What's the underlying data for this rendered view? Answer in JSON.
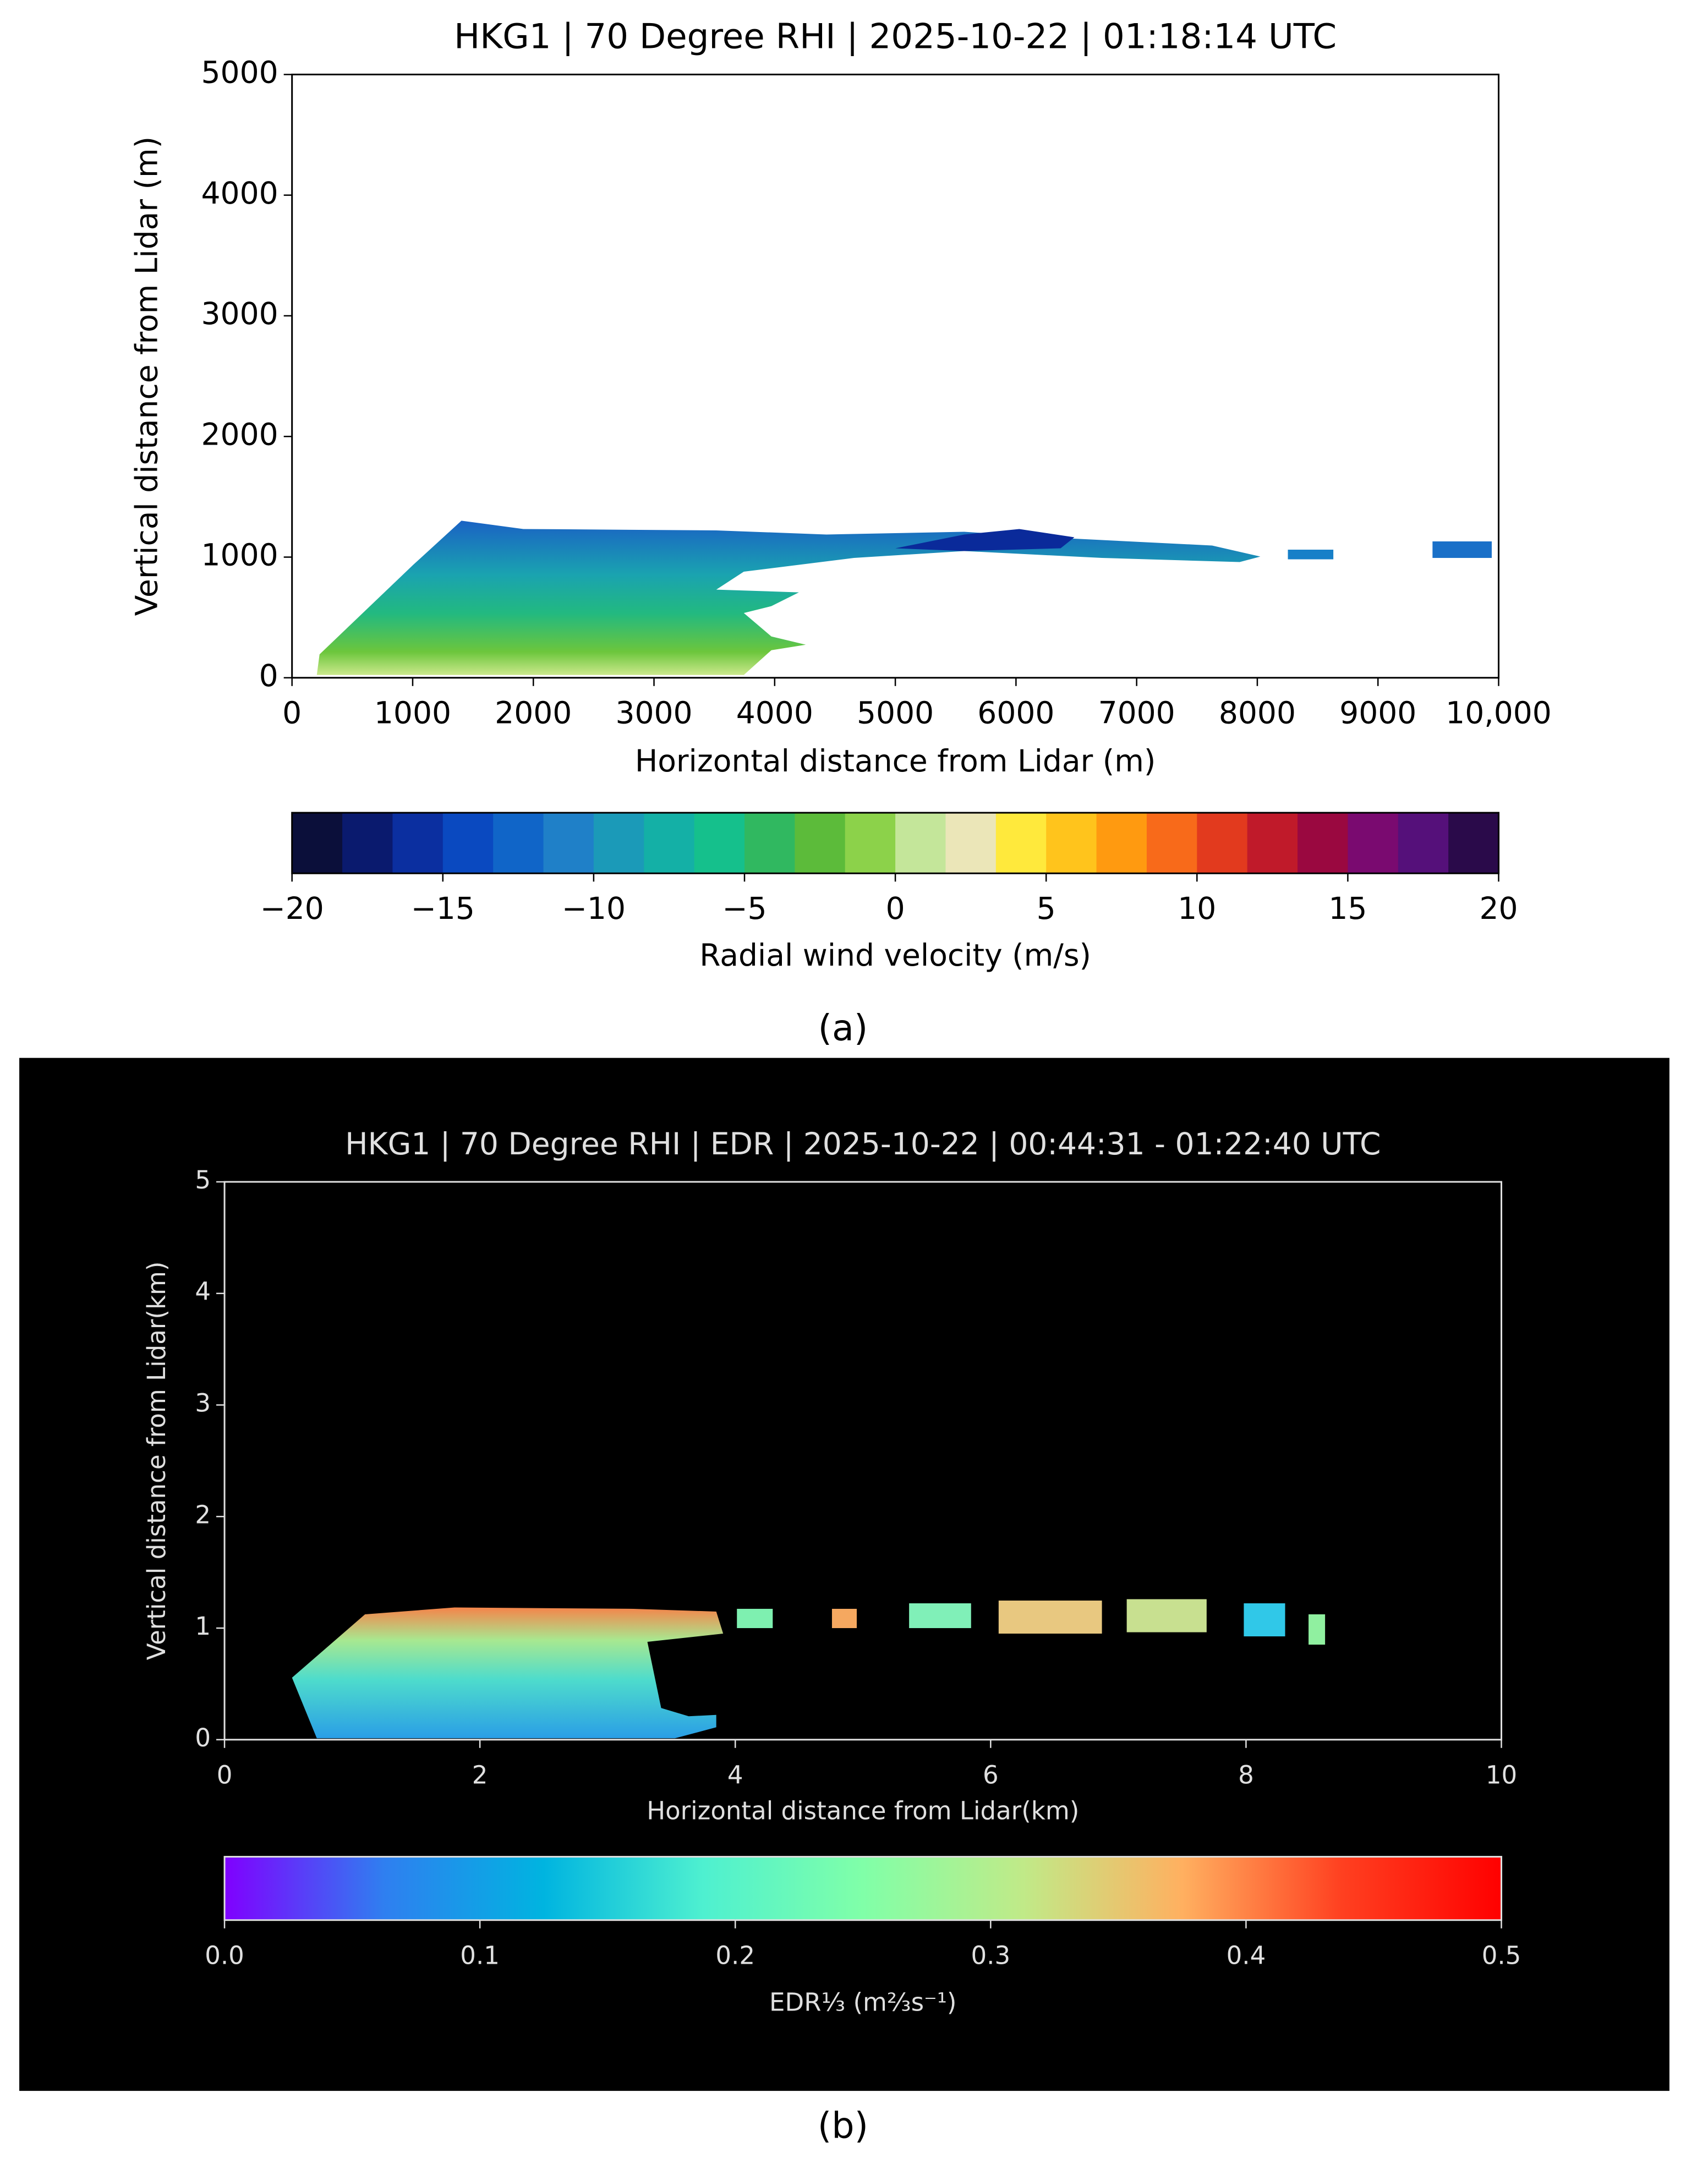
{
  "chart_data": [
    {
      "type": "heatmap",
      "title": "HKG1 | 70 Degree RHI | 2025-10-22 | 01:18:14 UTC",
      "x_label": "Horizontal distance from Lidar (m)",
      "y_label": "Vertical distance from Lidar (m)",
      "xlim": [
        0,
        10000
      ],
      "xticks": [
        0,
        1000,
        2000,
        3000,
        4000,
        5000,
        6000,
        7000,
        8000,
        9000,
        {
          "value": 10000,
          "label": "10,000"
        }
      ],
      "ylim": [
        0,
        5000
      ],
      "yticks": [
        0,
        1000,
        2000,
        3000,
        4000,
        5000
      ],
      "colorbar": {
        "label": "Radial wind velocity (m/s)",
        "lim": [
          -20,
          20
        ],
        "ticks": [
          {
            "value": -20,
            "label": "−20"
          },
          {
            "value": -15,
            "label": "−15"
          },
          {
            "value": -10,
            "label": "−10"
          },
          {
            "value": -5,
            "label": "−5"
          },
          0,
          5,
          10,
          15,
          20
        ],
        "colors": [
          "#0b0f3a",
          "#0a1a6e",
          "#0b2fa0",
          "#0a49c0",
          "#1065c8",
          "#1f80c8",
          "#1b9ab8",
          "#14b0a6",
          "#15c08c",
          "#30b860",
          "#5cbb3a",
          "#8cd24a",
          "#c4e69a",
          "#ebe6b8",
          "#ffe93c",
          "#ffc41c",
          "#ff9a10",
          "#f86a1a",
          "#e23a1e",
          "#c01a2a",
          "#9a0840",
          "#7a0a70",
          "#55107a",
          "#2a0a4a"
        ],
        "discrete": true
      },
      "panel_label": "(a)"
    },
    {
      "type": "heatmap",
      "title": "HKG1 | 70 Degree RHI | EDR | 2025-10-22 | 00:44:31 - 01:22:40 UTC",
      "x_label": "Horizontal distance from Lidar(km)",
      "y_label": "Vertical distance from Lidar(km)",
      "xlim": [
        0,
        10
      ],
      "xticks": [
        0,
        2,
        4,
        6,
        8,
        10
      ],
      "ylim": [
        0,
        5
      ],
      "yticks": [
        0,
        1,
        2,
        3,
        4,
        5
      ],
      "colorbar": {
        "label": "EDR⅓ (m⅔s⁻¹)",
        "lim": [
          0,
          0.5
        ],
        "ticks": [
          {
            "value": 0,
            "label": "0.0"
          },
          0.1,
          0.2,
          0.3,
          0.4,
          0.5
        ],
        "colors": [
          "#8000ff",
          "#2f7ff0",
          "#00b4e0",
          "#4ef0d0",
          "#80ffa8",
          "#c0ea88",
          "#ffb060",
          "#ff4020",
          "#ff0000"
        ],
        "discrete": false
      },
      "panel_label": "(b)"
    }
  ]
}
